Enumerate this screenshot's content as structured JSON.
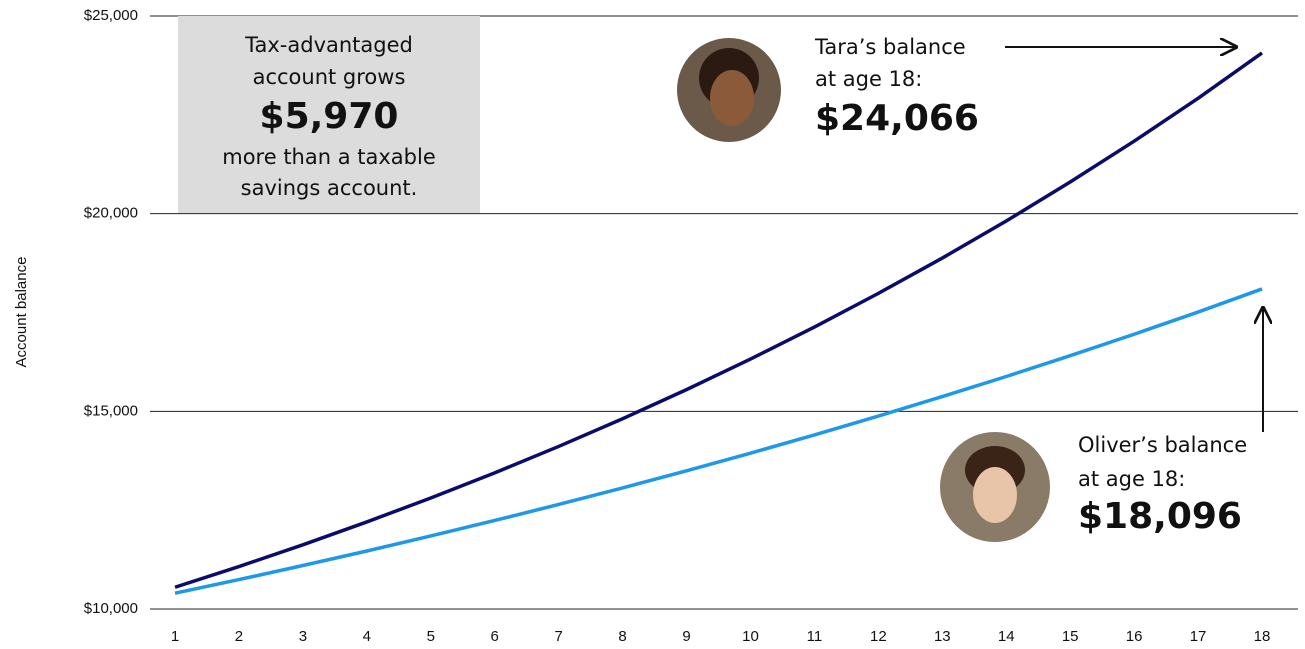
{
  "chart_data": {
    "type": "line",
    "y_label": "Account balance",
    "categories": [
      "1",
      "2",
      "3",
      "4",
      "5",
      "6",
      "7",
      "8",
      "9",
      "10",
      "11",
      "12",
      "13",
      "14",
      "15",
      "16",
      "17",
      "18"
    ],
    "series": [
      {
        "name": "Tara",
        "color": "#0b0b6b",
        "values": [
          10550,
          11074,
          11624,
          12202,
          12808,
          13444,
          14112,
          14813,
          15549,
          16322,
          17133,
          17984,
          18877,
          19815,
          20800,
          21833,
          22918,
          24066
        ]
      },
      {
        "name": "Oliver",
        "color": "#1e98e8",
        "values": [
          10400,
          10744,
          11100,
          11467,
          11847,
          12239,
          12644,
          13063,
          13495,
          13942,
          14403,
          14880,
          15373,
          15881,
          16407,
          16950,
          17511,
          18096
        ]
      }
    ],
    "ylim": [
      10000,
      25000
    ],
    "yticks": [
      {
        "value": 10000,
        "label": "$10,000"
      },
      {
        "value": 15000,
        "label": "$15,000"
      },
      {
        "value": 20000,
        "label": "$20,000"
      },
      {
        "value": 25000,
        "label": "$25,000"
      }
    ],
    "grid": true,
    "callout": {
      "lines": [
        "Tax-advantaged",
        "account grows",
        "$5,970",
        "more than a taxable",
        "savings account."
      ]
    },
    "tara_note": {
      "lines": [
        "Tara’s balance",
        "at age 18:",
        "$24,066"
      ]
    },
    "oliver_note": {
      "lines": [
        "Oliver’s balance",
        "at age 18:",
        "$18,096"
      ]
    }
  }
}
